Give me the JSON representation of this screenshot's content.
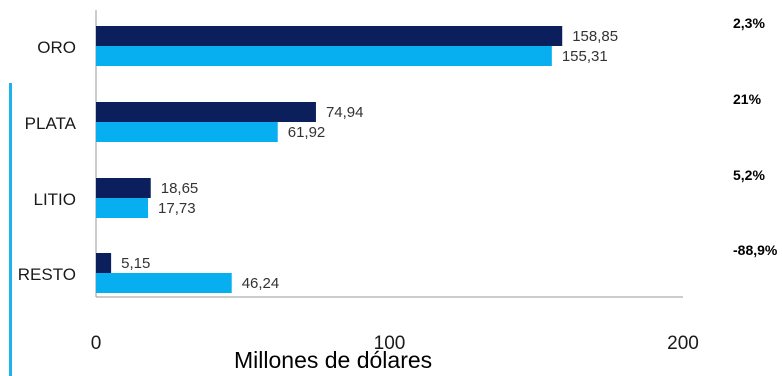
{
  "colors": {
    "series_dark": "#0b1f5c",
    "series_light": "#08aff0",
    "accent": "#1fb2ea",
    "axis": "#9a9a9a"
  },
  "chart_data": {
    "type": "bar",
    "orientation": "horizontal",
    "categories": [
      "ORO",
      "PLATA",
      "LITIO",
      "RESTO"
    ],
    "series": [
      {
        "values": [
          158.85,
          74.94,
          18.65,
          5.15
        ],
        "labels": [
          "158,85",
          "74,94",
          "18,65",
          "5,15"
        ]
      },
      {
        "values": [
          155.31,
          61.92,
          17.73,
          46.24
        ],
        "labels": [
          "155,31",
          "61,92",
          "17,73",
          "46,24"
        ]
      }
    ],
    "variations": [
      "2,3%",
      "21%",
      "5,2%",
      "-88,9%"
    ],
    "xlim": [
      0,
      200
    ],
    "ticks": [
      0,
      100,
      200
    ],
    "tick_labels": [
      "0",
      "100",
      "200"
    ],
    "xlabel": "Millones de dólares",
    "legend": "none",
    "grid": false
  }
}
